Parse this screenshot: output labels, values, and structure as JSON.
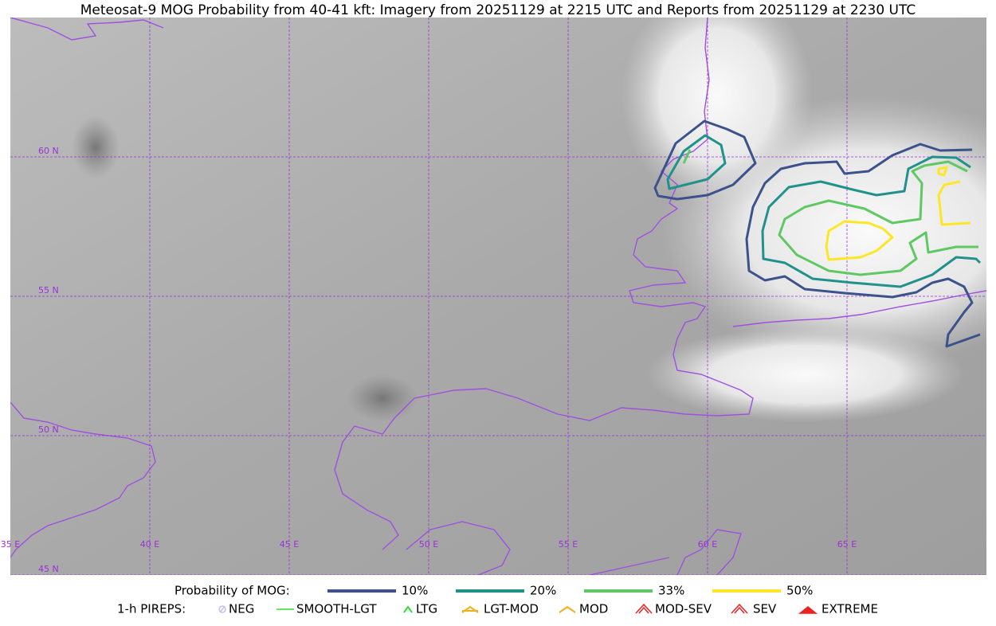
{
  "header": {
    "title": "Meteosat-9 MOG Probability from 40-41 kft: Imagery from 20251129 at 2215 UTC and Reports from 20251129 at 2230 UTC"
  },
  "map": {
    "lat_labels": [
      "60 N",
      "55 N",
      "50 N",
      "45 N"
    ],
    "lon_labels": [
      "35 E",
      "40 E",
      "45 E",
      "50 E",
      "55 E",
      "60 E",
      "65 E"
    ]
  },
  "legend": {
    "probability": {
      "label": "Probability of MOG:",
      "items": [
        {
          "label": "10%",
          "color": "#3b528b"
        },
        {
          "label": "20%",
          "color": "#21918c"
        },
        {
          "label": "33%",
          "color": "#5ec962"
        },
        {
          "label": "50%",
          "color": "#fde725"
        }
      ]
    },
    "pireps": {
      "label": "1-h PIREPS:",
      "items": [
        "NEG",
        "SMOOTH-LGT",
        "LTG",
        "LGT-MOD",
        "MOD",
        "MOD-SEV",
        "SEV",
        "EXTREME"
      ]
    }
  }
}
